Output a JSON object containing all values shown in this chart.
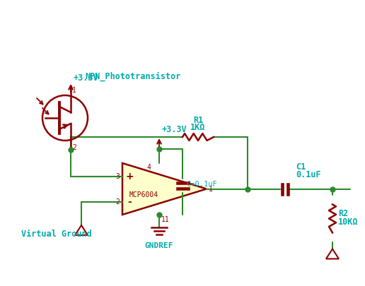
{
  "bg_color": "#ffffff",
  "wire_color": "#2d8a2d",
  "component_color": "#8b0000",
  "label_color": "#00aaaa",
  "pin_label_color": "#8b0000",
  "npn_label": "NPN_Phototransistor",
  "vcc_label": "+3.3V",
  "vcc2_label": "+3.3V",
  "r1_label1": "R1",
  "r1_label2": "1KΩ",
  "r2_label1": "R2",
  "r2_label2": "10KΩ",
  "c1_label1": "C1",
  "c1_label2": "0.1uF",
  "c_bypass_label": "C=0.1uF",
  "opamp_label": "MCP6004",
  "gnd_label": "GNDREF",
  "vgnd_label": "Virtual Ground",
  "plus_sign": "+",
  "minus_sign": "-"
}
